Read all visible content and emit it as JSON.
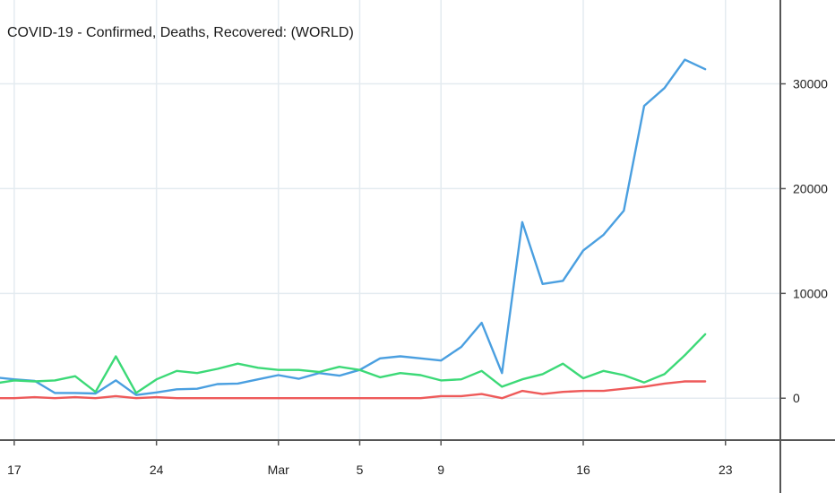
{
  "chart_data": {
    "type": "line",
    "title": "COVID-19 - Confirmed, Deaths, Recovered: (WORLD)",
    "xlabel": "",
    "ylabel": "",
    "ylim": [
      -4000,
      38000
    ],
    "grid": true,
    "x_ticks": [
      {
        "label": "17",
        "day": 1
      },
      {
        "label": "24",
        "day": 8
      },
      {
        "label": "Mar",
        "day": 14
      },
      {
        "label": "5",
        "day": 18
      },
      {
        "label": "9",
        "day": 22
      },
      {
        "label": "16",
        "day": 29
      },
      {
        "label": "23",
        "day": 36
      }
    ],
    "y_ticks": [
      0,
      10000,
      20000,
      30000
    ],
    "x_range": [
      0.3,
      38.7
    ],
    "series": [
      {
        "color": "#4a9fe0",
        "start_day": 0,
        "values": [
          2000,
          1800,
          1650,
          500,
          500,
          450,
          1700,
          300,
          550,
          850,
          900,
          1350,
          1400,
          1800,
          2200,
          1850,
          2400,
          2150,
          2700,
          3800,
          4000,
          3800,
          3600,
          4900,
          7200,
          2400,
          16800,
          10900,
          11200,
          14100,
          15600,
          17900,
          27900,
          29600,
          32300,
          31400
        ]
      },
      {
        "color": "#3cd977",
        "start_day": 0,
        "values": [
          1400,
          1700,
          1600,
          1700,
          2100,
          600,
          4000,
          500,
          1800,
          2600,
          2400,
          2800,
          3300,
          2900,
          2700,
          2700,
          2500,
          3000,
          2700,
          2000,
          2400,
          2200,
          1700,
          1800,
          2600,
          1100,
          1800,
          2300,
          3300,
          1900,
          2600,
          2200,
          1500,
          2300,
          4100,
          6100
        ]
      },
      {
        "color": "#ee5a5a",
        "start_day": 0,
        "values": [
          0,
          0,
          100,
          0,
          100,
          0,
          200,
          0,
          100,
          0,
          0,
          0,
          0,
          0,
          0,
          0,
          0,
          0,
          0,
          0,
          0,
          0,
          200,
          200,
          400,
          0,
          700,
          400,
          600,
          700,
          700,
          900,
          1100,
          1400,
          1600,
          1600
        ]
      }
    ]
  }
}
